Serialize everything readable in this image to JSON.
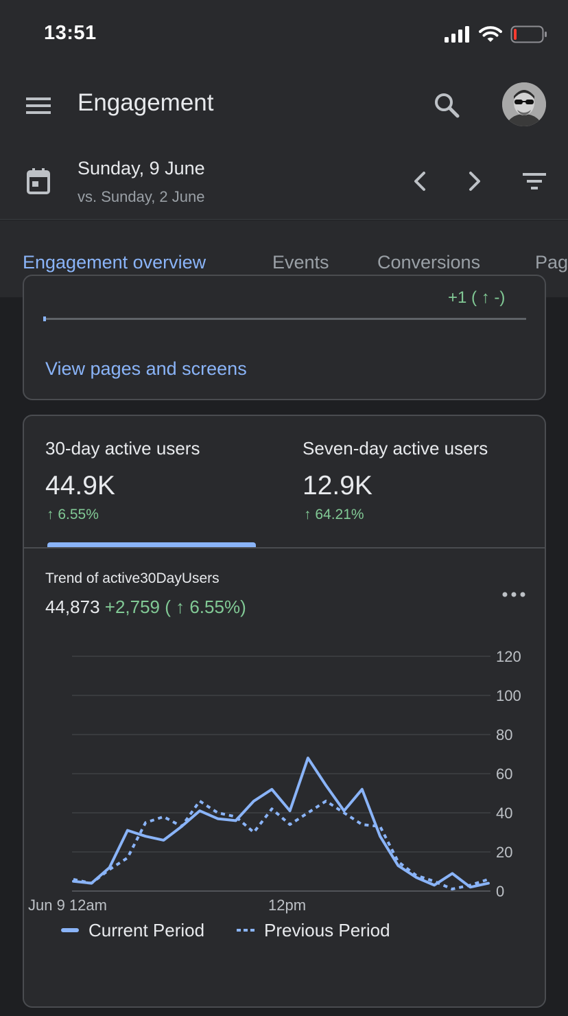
{
  "status_bar": {
    "time": "13:51"
  },
  "app_bar": {
    "title": "Engagement"
  },
  "date_bar": {
    "date": "Sunday, 9 June",
    "comparison": "vs. Sunday, 2 June"
  },
  "tabs": [
    {
      "label": "Engagement overview",
      "active": true
    },
    {
      "label": "Events",
      "active": false
    },
    {
      "label": "Conversions",
      "active": false
    },
    {
      "label": "Pag",
      "active": false
    }
  ],
  "top_card": {
    "clipped_change": "+1 ( ↑ -)",
    "link": "View pages and screens"
  },
  "metrics": [
    {
      "label": "30-day active users",
      "value": "44.9K",
      "change": "↑ 6.55%"
    },
    {
      "label": "Seven-day active users",
      "value": "12.9K",
      "change": "↑ 64.21%"
    }
  ],
  "trend": {
    "title": "Trend of active30DayUsers",
    "total": "44,873",
    "delta": "+2,759 ( ↑ 6.55%)"
  },
  "colors": {
    "accent": "#8ab4f8",
    "positive": "#81c995",
    "surface": "#292a2d",
    "background": "#1e1f22"
  },
  "chart_data": {
    "type": "line",
    "x_tick_labels": [
      "Jun 9 12am",
      "12pm"
    ],
    "y_ticks": [
      0,
      20,
      40,
      60,
      80,
      100,
      120
    ],
    "ylim": [
      0,
      120
    ],
    "grid": true,
    "legend_position": "bottom-left",
    "series": [
      {
        "name": "Current Period",
        "style": "solid",
        "values": [
          5,
          4,
          12,
          31,
          28,
          26,
          33,
          41,
          37,
          36,
          46,
          52,
          41,
          68,
          54,
          41,
          52,
          28,
          13,
          7,
          3,
          9,
          2,
          4
        ]
      },
      {
        "name": "Previous Period",
        "style": "dotted",
        "values": [
          6,
          4,
          11,
          17,
          35,
          38,
          33,
          46,
          40,
          38,
          30,
          42,
          34,
          40,
          46,
          40,
          34,
          33,
          15,
          8,
          5,
          1,
          3,
          6
        ]
      }
    ]
  }
}
